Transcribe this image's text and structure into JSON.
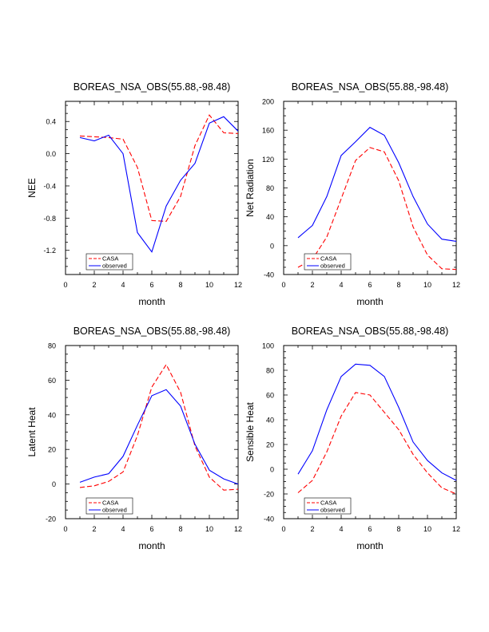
{
  "figure": {
    "background": "#ffffff"
  },
  "colors": {
    "casa": "#ff0000",
    "observed": "#0000ff",
    "axes": "#000000"
  },
  "chart_data": [
    {
      "type": "line",
      "title": "BOREAS_NSA_OBS(55.88,-98.48)",
      "xlabel": "month",
      "ylabel": "NEE",
      "xlim": [
        0,
        12
      ],
      "ylim": [
        -1.5,
        0.65
      ],
      "xticks": [
        0,
        2,
        4,
        6,
        8,
        10,
        12
      ],
      "yticks": [
        -1.2,
        -0.8,
        -0.4,
        0.0,
        0.4
      ],
      "ytick_labels": [
        "-1.2",
        "-0.8",
        "-0.4",
        "0.0",
        "0.4"
      ],
      "x": [
        1,
        2,
        3,
        4,
        5,
        6,
        7,
        8,
        9,
        10,
        11,
        12
      ],
      "series": [
        {
          "name": "CASA",
          "color": "#ff0000",
          "dash": true,
          "values": [
            0.22,
            0.21,
            0.2,
            0.18,
            -0.17,
            -0.83,
            -0.84,
            -0.53,
            0.1,
            0.48,
            0.26,
            0.25
          ]
        },
        {
          "name": "observed",
          "color": "#0000ff",
          "dash": false,
          "values": [
            0.2,
            0.16,
            0.23,
            0.0,
            -0.98,
            -1.22,
            -0.65,
            -0.33,
            -0.12,
            0.38,
            0.46,
            0.28
          ]
        }
      ],
      "legend": "bottom-left"
    },
    {
      "type": "line",
      "title": "BOREAS_NSA_OBS(55.88,-98.48)",
      "xlabel": "month",
      "ylabel": "Net Radiation",
      "xlim": [
        0,
        12
      ],
      "ylim": [
        -40,
        200
      ],
      "xticks": [
        0,
        2,
        4,
        6,
        8,
        10,
        12
      ],
      "yticks": [
        -40,
        0,
        40,
        80,
        120,
        160,
        200
      ],
      "ytick_labels": [
        "-40",
        "0",
        "40",
        "80",
        "120",
        "160",
        "200"
      ],
      "x": [
        1,
        2,
        3,
        4,
        5,
        6,
        7,
        8,
        9,
        10,
        11,
        12
      ],
      "series": [
        {
          "name": "CASA",
          "color": "#ff0000",
          "dash": true,
          "values": [
            -30,
            -19,
            12,
            65,
            118,
            136,
            130,
            90,
            26,
            -13,
            -32,
            -33
          ]
        },
        {
          "name": "observed",
          "color": "#0000ff",
          "dash": false,
          "values": [
            11,
            28,
            68,
            125,
            144,
            164,
            153,
            115,
            68,
            30,
            9,
            6
          ]
        }
      ],
      "legend": "bottom-left"
    },
    {
      "type": "line",
      "title": "BOREAS_NSA_OBS(55.88,-98.48)",
      "xlabel": "month",
      "ylabel": "Latent Heat",
      "xlim": [
        0,
        12
      ],
      "ylim": [
        -20,
        80
      ],
      "xticks": [
        0,
        2,
        4,
        6,
        8,
        10,
        12
      ],
      "yticks": [
        -20,
        0,
        20,
        40,
        60,
        80
      ],
      "ytick_labels": [
        "-20",
        "0",
        "20",
        "40",
        "60",
        "80"
      ],
      "x": [
        1,
        2,
        3,
        4,
        5,
        6,
        7,
        8,
        9,
        10,
        11,
        12
      ],
      "series": [
        {
          "name": "CASA",
          "color": "#ff0000",
          "dash": true,
          "values": [
            -2,
            -1,
            1.5,
            7,
            28,
            56,
            69,
            53,
            22,
            4,
            -3.5,
            -3
          ]
        },
        {
          "name": "observed",
          "color": "#0000ff",
          "dash": false,
          "values": [
            1,
            4,
            6,
            16,
            34,
            51,
            54.5,
            45,
            23,
            8,
            3,
            0
          ]
        }
      ],
      "legend": "bottom-left"
    },
    {
      "type": "line",
      "title": "BOREAS_NSA_OBS(55.88,-98.48)",
      "xlabel": "month",
      "ylabel": "Sensible Heat",
      "xlim": [
        0,
        12
      ],
      "ylim": [
        -40,
        100
      ],
      "xticks": [
        0,
        2,
        4,
        6,
        8,
        10,
        12
      ],
      "yticks": [
        -40,
        -20,
        0,
        20,
        40,
        60,
        80,
        100
      ],
      "ytick_labels": [
        "-40",
        "-20",
        "0",
        "20",
        "40",
        "60",
        "80",
        "100"
      ],
      "x": [
        1,
        2,
        3,
        4,
        5,
        6,
        7,
        8,
        9,
        10,
        11,
        12
      ],
      "series": [
        {
          "name": "CASA",
          "color": "#ff0000",
          "dash": true,
          "values": [
            -19,
            -9,
            14,
            43,
            62,
            60,
            46,
            32,
            12,
            -3,
            -15,
            -20
          ]
        },
        {
          "name": "observed",
          "color": "#0000ff",
          "dash": false,
          "values": [
            -4,
            15,
            48,
            75,
            85,
            84,
            75,
            50,
            22,
            7,
            -3,
            -9
          ]
        }
      ],
      "legend": "bottom-left"
    }
  ]
}
